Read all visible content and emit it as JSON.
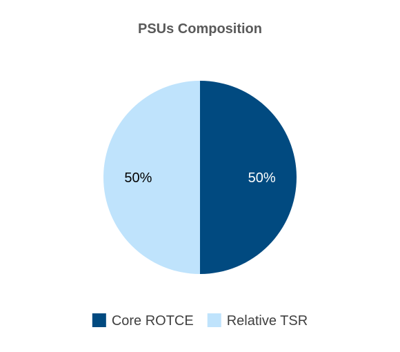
{
  "chart_data": {
    "type": "pie",
    "title": "PSUs Composition",
    "categories": [
      "Core ROTCE",
      "Relative TSR"
    ],
    "values": [
      50,
      50
    ],
    "data_labels": [
      "50%",
      "50%"
    ],
    "colors": [
      "#014A80",
      "#BFE3FC"
    ],
    "label_colors": [
      "#ffffff",
      "#000000"
    ],
    "legend_position": "bottom",
    "start_angle_deg": 0,
    "direction": "clockwise"
  }
}
